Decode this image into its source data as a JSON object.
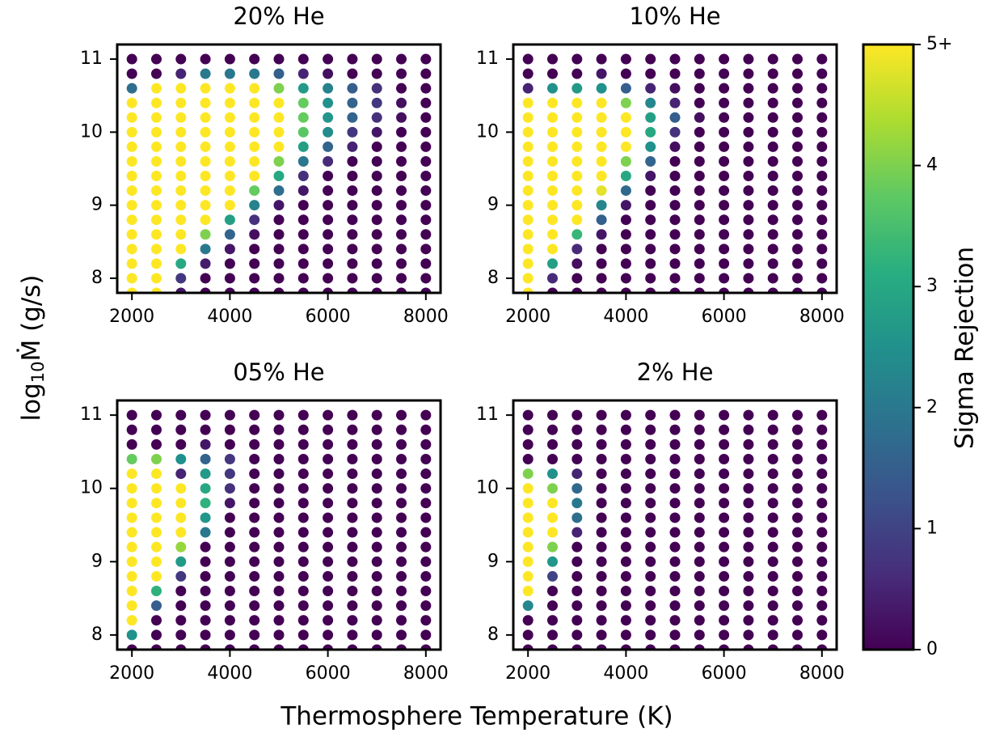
{
  "chart_data": [
    {
      "type": "scatter",
      "title": "20% He",
      "x": [
        2000,
        2500,
        3000,
        3500,
        4000,
        4500,
        5000,
        5500,
        6000,
        6500,
        7000,
        7500,
        8000
      ],
      "y": [
        7.8,
        8.0,
        8.2,
        8.4,
        8.6,
        8.8,
        9.0,
        9.2,
        9.4,
        9.6,
        9.8,
        10.0,
        10.2,
        10.4,
        10.6,
        10.8,
        11.0
      ],
      "values": [
        [
          5,
          5,
          0.3,
          0,
          0,
          0,
          0,
          0,
          0,
          0,
          0,
          0,
          0
        ],
        [
          5,
          5,
          0.8,
          0,
          0,
          0,
          0,
          0,
          0,
          0,
          0,
          0,
          0
        ],
        [
          5,
          5,
          3,
          0.4,
          0,
          0,
          0,
          0,
          0,
          0,
          0,
          0,
          0
        ],
        [
          5,
          5,
          5,
          2,
          0.3,
          0,
          0,
          0,
          0,
          0,
          0,
          0,
          0
        ],
        [
          5,
          5,
          5,
          4,
          1.6,
          0.2,
          0,
          0,
          0,
          0,
          0,
          0,
          0
        ],
        [
          5,
          5,
          5,
          5,
          2.8,
          0.7,
          0,
          0,
          0,
          0,
          0,
          0,
          0
        ],
        [
          5,
          5,
          5,
          5,
          5,
          2.2,
          0.3,
          0,
          0,
          0,
          0,
          0,
          0
        ],
        [
          5,
          5,
          5,
          5,
          5,
          3.8,
          1.8,
          0.3,
          0,
          0,
          0,
          0,
          0
        ],
        [
          5,
          5,
          5,
          5,
          5,
          5,
          3,
          0.7,
          0,
          0,
          0,
          0,
          0
        ],
        [
          5,
          5,
          5,
          5,
          5,
          5,
          4,
          2,
          0.6,
          0,
          0,
          0,
          0
        ],
        [
          5,
          5,
          5,
          5,
          5,
          5,
          5,
          2.8,
          1.6,
          0.5,
          0,
          0,
          0
        ],
        [
          5,
          5,
          5,
          5,
          5,
          5,
          5,
          3.7,
          2.4,
          0.8,
          0.3,
          0,
          0
        ],
        [
          5,
          5,
          5,
          5,
          5,
          5,
          5,
          3.8,
          2.6,
          1.6,
          0.7,
          0.2,
          0
        ],
        [
          5,
          5,
          5,
          5,
          5,
          5,
          5,
          3.8,
          2.5,
          1.6,
          0.8,
          0.2,
          0
        ],
        [
          1.8,
          5,
          5,
          5,
          5,
          5,
          4,
          2.7,
          2.2,
          1.5,
          0.7,
          0,
          0
        ],
        [
          0,
          0,
          0.5,
          2,
          2,
          2,
          1.5,
          0.5,
          0.2,
          0,
          0,
          0,
          0
        ],
        [
          0,
          0,
          0,
          0,
          0,
          0,
          0,
          0,
          0,
          0,
          0,
          0,
          0
        ]
      ],
      "xlim": [
        1700,
        8300
      ],
      "ylim": [
        7.8,
        11.2
      ],
      "xticks": [
        2000,
        4000,
        6000,
        8000
      ],
      "yticks": [
        8,
        9,
        10,
        11
      ]
    },
    {
      "type": "scatter",
      "title": "10% He",
      "x": [
        2000,
        2500,
        3000,
        3500,
        4000,
        4500,
        5000,
        5500,
        6000,
        6500,
        7000,
        7500,
        8000
      ],
      "y": [
        7.8,
        8.0,
        8.2,
        8.4,
        8.6,
        8.8,
        9.0,
        9.2,
        9.4,
        9.6,
        9.8,
        10.0,
        10.2,
        10.4,
        10.6,
        10.8,
        11.0
      ],
      "values": [
        [
          5,
          0,
          0,
          0,
          0,
          0,
          0,
          0,
          0,
          0,
          0,
          0,
          0
        ],
        [
          5,
          0.6,
          0,
          0,
          0,
          0,
          0,
          0,
          0,
          0,
          0,
          0,
          0
        ],
        [
          5,
          2.8,
          0.2,
          0,
          0,
          0,
          0,
          0,
          0,
          0,
          0,
          0,
          0
        ],
        [
          5,
          5,
          0.6,
          0,
          0,
          0,
          0,
          0,
          0,
          0,
          0,
          0,
          0
        ],
        [
          5,
          5,
          3.3,
          0.3,
          0,
          0,
          0,
          0,
          0,
          0,
          0,
          0,
          0
        ],
        [
          5,
          5,
          5,
          1.5,
          0,
          0,
          0,
          0,
          0,
          0,
          0,
          0,
          0
        ],
        [
          5,
          5,
          5,
          2.3,
          0.3,
          0,
          0,
          0,
          0,
          0,
          0,
          0,
          0
        ],
        [
          5,
          5,
          5,
          4.8,
          1.7,
          0,
          0,
          0,
          0,
          0,
          0,
          0,
          0
        ],
        [
          5,
          5,
          5,
          5,
          3,
          0.3,
          0,
          0,
          0,
          0,
          0,
          0,
          0
        ],
        [
          5,
          5,
          5,
          5,
          4,
          1.6,
          0,
          0,
          0,
          0,
          0,
          0,
          0
        ],
        [
          5,
          5,
          5,
          5,
          5,
          2.5,
          0.2,
          0,
          0,
          0,
          0,
          0,
          0
        ],
        [
          5,
          5,
          5,
          5,
          5,
          3,
          0.7,
          0,
          0,
          0,
          0,
          0,
          0
        ],
        [
          5,
          5,
          5,
          5,
          5,
          2.8,
          1.5,
          0.2,
          0,
          0,
          0,
          0,
          0
        ],
        [
          5,
          5,
          5,
          5,
          4,
          2.3,
          0.5,
          0,
          0,
          0,
          0,
          0,
          0
        ],
        [
          0.5,
          2.5,
          2.7,
          2.5,
          1.5,
          0.5,
          0.2,
          0,
          0,
          0,
          0,
          0,
          0
        ],
        [
          0,
          0,
          0,
          0.3,
          0,
          0,
          0,
          0,
          0,
          0,
          0,
          0,
          0
        ],
        [
          0,
          0,
          0,
          0,
          0,
          0,
          0,
          0,
          0,
          0,
          0,
          0,
          0
        ]
      ],
      "xlim": [
        1700,
        8300
      ],
      "ylim": [
        7.8,
        11.2
      ],
      "xticks": [
        2000,
        4000,
        6000,
        8000
      ],
      "yticks": [
        8,
        9,
        10,
        11
      ]
    },
    {
      "type": "scatter",
      "title": "05% He",
      "x": [
        2000,
        2500,
        3000,
        3500,
        4000,
        4500,
        5000,
        5500,
        6000,
        6500,
        7000,
        7500,
        8000
      ],
      "y": [
        7.8,
        8.0,
        8.2,
        8.4,
        8.6,
        8.8,
        9.0,
        9.2,
        9.4,
        9.6,
        9.8,
        10.0,
        10.2,
        10.4,
        10.6,
        10.8,
        11.0
      ],
      "values": [
        [
          0,
          0,
          0,
          0,
          0,
          0,
          0,
          0,
          0,
          0,
          0,
          0,
          0
        ],
        [
          2.5,
          0,
          0,
          0,
          0,
          0,
          0,
          0,
          0,
          0,
          0,
          0,
          0
        ],
        [
          5,
          0,
          0,
          0,
          0,
          0,
          0,
          0,
          0,
          0,
          0,
          0,
          0
        ],
        [
          5,
          1.5,
          0,
          0,
          0,
          0,
          0,
          0,
          0,
          0,
          0,
          0,
          0
        ],
        [
          5,
          3.2,
          0,
          0,
          0,
          0,
          0,
          0,
          0,
          0,
          0,
          0,
          0
        ],
        [
          5,
          5,
          0.8,
          0,
          0,
          0,
          0,
          0,
          0,
          0,
          0,
          0,
          0
        ],
        [
          5,
          5,
          2.7,
          0,
          0,
          0,
          0,
          0,
          0,
          0,
          0,
          0,
          0
        ],
        [
          5,
          5,
          4.2,
          0,
          0,
          0,
          0,
          0,
          0,
          0,
          0,
          0,
          0
        ],
        [
          5,
          5,
          5,
          2,
          0,
          0,
          0,
          0,
          0,
          0,
          0,
          0,
          0
        ],
        [
          5,
          5,
          5,
          2.6,
          0,
          0,
          0,
          0,
          0,
          0,
          0,
          0,
          0
        ],
        [
          5,
          5,
          5,
          3.2,
          0.3,
          0,
          0,
          0,
          0,
          0,
          0,
          0,
          0
        ],
        [
          5,
          5,
          5,
          3,
          0.7,
          0,
          0,
          0,
          0,
          0,
          0,
          0,
          0
        ],
        [
          5,
          5,
          0.5,
          2.7,
          0.8,
          0,
          0,
          0,
          0,
          0,
          0,
          0,
          0
        ],
        [
          3.8,
          4,
          2.5,
          1.6,
          0.8,
          0,
          0,
          0,
          0,
          0,
          0,
          0,
          0
        ],
        [
          0,
          0,
          0,
          0.3,
          0,
          0,
          0,
          0,
          0,
          0,
          0,
          0,
          0
        ],
        [
          0,
          0,
          0,
          0,
          0,
          0,
          0,
          0,
          0,
          0,
          0,
          0,
          0
        ],
        [
          0,
          0,
          0,
          0,
          0,
          0,
          0,
          0,
          0,
          0,
          0,
          0,
          0
        ]
      ],
      "xlim": [
        1700,
        8300
      ],
      "ylim": [
        7.8,
        11.2
      ],
      "xticks": [
        2000,
        4000,
        6000,
        8000
      ],
      "yticks": [
        8,
        9,
        10,
        11
      ]
    },
    {
      "type": "scatter",
      "title": "2% He",
      "x": [
        2000,
        2500,
        3000,
        3500,
        4000,
        4500,
        5000,
        5500,
        6000,
        6500,
        7000,
        7500,
        8000
      ],
      "y": [
        7.8,
        8.0,
        8.2,
        8.4,
        8.6,
        8.8,
        9.0,
        9.2,
        9.4,
        9.6,
        9.8,
        10.0,
        10.2,
        10.4,
        10.6,
        10.8,
        11.0
      ],
      "values": [
        [
          0,
          0,
          0,
          0,
          0,
          0,
          0,
          0,
          0,
          0,
          0,
          0,
          0
        ],
        [
          0,
          0,
          0,
          0,
          0,
          0,
          0,
          0,
          0,
          0,
          0,
          0,
          0
        ],
        [
          0,
          0,
          0,
          0,
          0,
          0,
          0,
          0,
          0,
          0,
          0,
          0,
          0
        ],
        [
          2.3,
          0,
          0,
          0,
          0,
          0,
          0,
          0,
          0,
          0,
          0,
          0,
          0
        ],
        [
          5,
          0,
          0,
          0,
          0,
          0,
          0,
          0,
          0,
          0,
          0,
          0,
          0
        ],
        [
          5,
          1,
          0,
          0,
          0,
          0,
          0,
          0,
          0,
          0,
          0,
          0,
          0
        ],
        [
          5,
          2.6,
          0,
          0,
          0,
          0,
          0,
          0,
          0,
          0,
          0,
          0,
          0
        ],
        [
          5,
          4,
          0,
          0,
          0,
          0,
          0,
          0,
          0,
          0,
          0,
          0,
          0
        ],
        [
          5,
          5,
          0.5,
          0,
          0,
          0,
          0,
          0,
          0,
          0,
          0,
          0,
          0
        ],
        [
          5,
          5,
          1.8,
          0,
          0,
          0,
          0,
          0,
          0,
          0,
          0,
          0,
          0
        ],
        [
          5,
          5,
          2,
          0,
          0,
          0,
          0,
          0,
          0,
          0,
          0,
          0,
          0
        ],
        [
          5,
          4,
          1.7,
          0,
          0,
          0,
          0,
          0,
          0,
          0,
          0,
          0,
          0
        ],
        [
          4,
          2.5,
          0.5,
          0,
          0,
          0,
          0,
          0,
          0,
          0,
          0,
          0,
          0
        ],
        [
          0,
          0,
          0,
          0,
          0,
          0,
          0,
          0,
          0,
          0,
          0,
          0,
          0
        ],
        [
          0,
          0,
          0,
          0,
          0,
          0,
          0,
          0,
          0,
          0,
          0,
          0,
          0
        ],
        [
          0,
          0,
          0,
          0,
          0,
          0,
          0,
          0,
          0,
          0,
          0,
          0,
          0
        ],
        [
          0,
          0,
          0,
          0,
          0,
          0,
          0,
          0,
          0,
          0,
          0,
          0,
          0
        ]
      ],
      "xlim": [
        1700,
        8300
      ],
      "ylim": [
        7.8,
        11.2
      ],
      "xticks": [
        2000,
        4000,
        6000,
        8000
      ],
      "yticks": [
        8,
        9,
        10,
        11
      ]
    }
  ],
  "x_label": "Thermosphere Temperature (K)",
  "y_label": {
    "base": "log",
    "subscript": "10",
    "rest": "Ṁ  (g/s)"
  },
  "colorbar": {
    "label": "Sigma Rejection",
    "colormap": "viridis",
    "lim": [
      0,
      5
    ],
    "ticks": [
      0,
      1,
      2,
      3,
      4,
      {
        "value": 5,
        "label": "5+"
      }
    ]
  }
}
